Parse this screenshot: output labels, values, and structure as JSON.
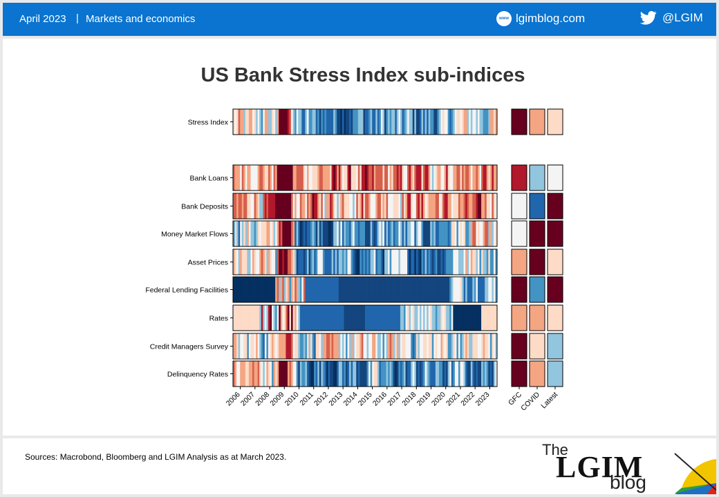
{
  "header": {
    "date": "April 2023",
    "separator": "|",
    "section": "Markets and economics",
    "website_icon": "www-globe-icon",
    "website": "lgimblog.com",
    "twitter_icon": "twitter-bird-icon",
    "twitter": "@LGIM"
  },
  "chart_data": {
    "type": "heatmap",
    "title": "US Bank Stress Index sub-indices",
    "x_tick_labels": [
      "2006",
      "2007",
      "2008",
      "2009",
      "2010",
      "2011",
      "2012",
      "2013",
      "2014",
      "2015",
      "2016",
      "2017",
      "2018",
      "2019",
      "2020",
      "2021",
      "2022",
      "2023"
    ],
    "snapshot_labels": [
      "GFC",
      "COVID",
      "Latest"
    ],
    "color_scale": {
      "scale_levels": [
        -5,
        -4,
        -3,
        -2,
        -1,
        0,
        1,
        2,
        3,
        4,
        5
      ],
      "colors": [
        "#053061",
        "#14457e",
        "#2166ac",
        "#4393c3",
        "#92c5de",
        "#f4f4f4",
        "#fddbc7",
        "#f4a582",
        "#d6604d",
        "#b2182b",
        "#67001f"
      ]
    },
    "rows": [
      {
        "label": "Stress Index",
        "snapshot": [
          5,
          2,
          1
        ]
      },
      {
        "label": "Bank Loans",
        "snapshot": [
          4,
          -1,
          0
        ]
      },
      {
        "label": "Bank Deposits",
        "snapshot": [
          0,
          -3,
          5
        ]
      },
      {
        "label": "Money Market Flows",
        "snapshot": [
          0,
          5,
          5
        ]
      },
      {
        "label": "Asset Prices",
        "snapshot": [
          2,
          5,
          1
        ]
      },
      {
        "label": "Federal Lending Facilities",
        "snapshot": [
          5,
          -2,
          5
        ]
      },
      {
        "label": "Rates",
        "snapshot": [
          2,
          2,
          1
        ]
      },
      {
        "label": "Credit Managers Survey",
        "snapshot": [
          5,
          1,
          -1
        ]
      },
      {
        "label": "Delinquency Rates",
        "snapshot": [
          5,
          2,
          -1
        ]
      }
    ]
  },
  "footer": {
    "sources": "Sources: Macrobond, Bloomberg and LGIM Analysis as at March 2023.",
    "logo_the": "The",
    "logo_lgim": "LGIM",
    "logo_blog": "blog"
  }
}
